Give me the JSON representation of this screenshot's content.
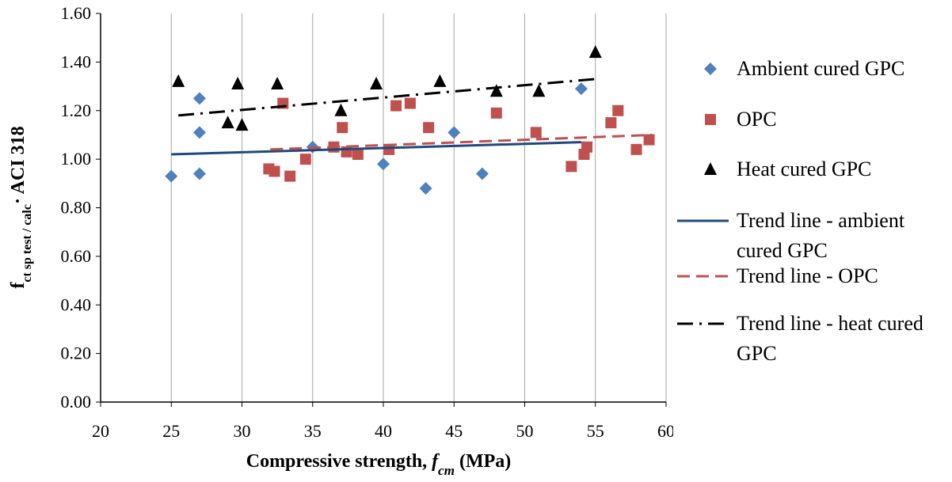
{
  "chart_data": {
    "type": "scatter",
    "xlabel_parts": [
      "Compressive strength, ",
      "f",
      "cm",
      " (MPa)"
    ],
    "ylabel_parts": [
      "f",
      "ct sp test / calc",
      "· ACI 318"
    ],
    "xlim": [
      20,
      60
    ],
    "xticks": [
      20,
      25,
      30,
      35,
      40,
      45,
      50,
      55,
      60
    ],
    "ylim": [
      0,
      1.6
    ],
    "yticks": [
      {
        "value": 0,
        "label": "0.00"
      },
      {
        "value": 0.2,
        "label": "0.20"
      },
      {
        "value": 0.4,
        "label": "0.40"
      },
      {
        "value": 0.6,
        "label": "0.60"
      },
      {
        "value": 0.8,
        "label": "0.80"
      },
      {
        "value": 1.0,
        "label": "1.00"
      },
      {
        "value": 1.2,
        "label": "1.20"
      },
      {
        "value": 1.4,
        "label": "1.40"
      },
      {
        "value": 1.6,
        "label": "1.60"
      }
    ],
    "grid": "x",
    "series": [
      {
        "name": "Ambient cured GPC",
        "type": "scatter",
        "marker": "diamond",
        "color": "#4f81bd",
        "x": [
          25,
          27,
          27,
          27,
          35,
          40,
          43,
          45,
          47,
          54
        ],
        "values": [
          0.93,
          1.25,
          1.11,
          0.94,
          1.05,
          0.98,
          0.88,
          1.11,
          0.94,
          1.29
        ]
      },
      {
        "name": "OPC",
        "type": "scatter",
        "marker": "square",
        "color": "#c0504d",
        "x": [
          32.9,
          31.9,
          32.3,
          33.4,
          34.5,
          36.5,
          37.1,
          37.4,
          38.2,
          40.4,
          40.9,
          41.9,
          43.2,
          48,
          50.8,
          53.3,
          54.2,
          54.4,
          56.1,
          56.6,
          57.9,
          58.8
        ],
        "values": [
          1.23,
          0.96,
          0.95,
          0.93,
          1.0,
          1.05,
          1.13,
          1.03,
          1.02,
          1.04,
          1.22,
          1.23,
          1.13,
          1.19,
          1.11,
          0.97,
          1.02,
          1.05,
          1.15,
          1.2,
          1.04,
          1.08
        ]
      },
      {
        "name": "Heat cured GPC",
        "type": "scatter",
        "marker": "triangle",
        "color": "#000000",
        "x": [
          25.5,
          29,
          29.7,
          30,
          32.5,
          37,
          39.5,
          44,
          48,
          51,
          55
        ],
        "values": [
          1.32,
          1.15,
          1.31,
          1.14,
          1.31,
          1.2,
          1.31,
          1.32,
          1.28,
          1.28,
          1.44
        ]
      },
      {
        "name": "Trend line - ambient cured GPC",
        "type": "line",
        "dash": "solid",
        "color": "#1f497d",
        "x": [
          25,
          54
        ],
        "values": [
          1.02,
          1.07
        ]
      },
      {
        "name": "Trend line - OPC",
        "type": "line",
        "dash": "dashed",
        "color": "#c0504d",
        "x": [
          32,
          59
        ],
        "values": [
          1.04,
          1.1
        ]
      },
      {
        "name": "Trend line - heat cured GPC",
        "type": "line",
        "dash": "dashdot",
        "color": "#000000",
        "x": [
          25.5,
          55
        ],
        "values": [
          1.18,
          1.33
        ]
      }
    ]
  }
}
